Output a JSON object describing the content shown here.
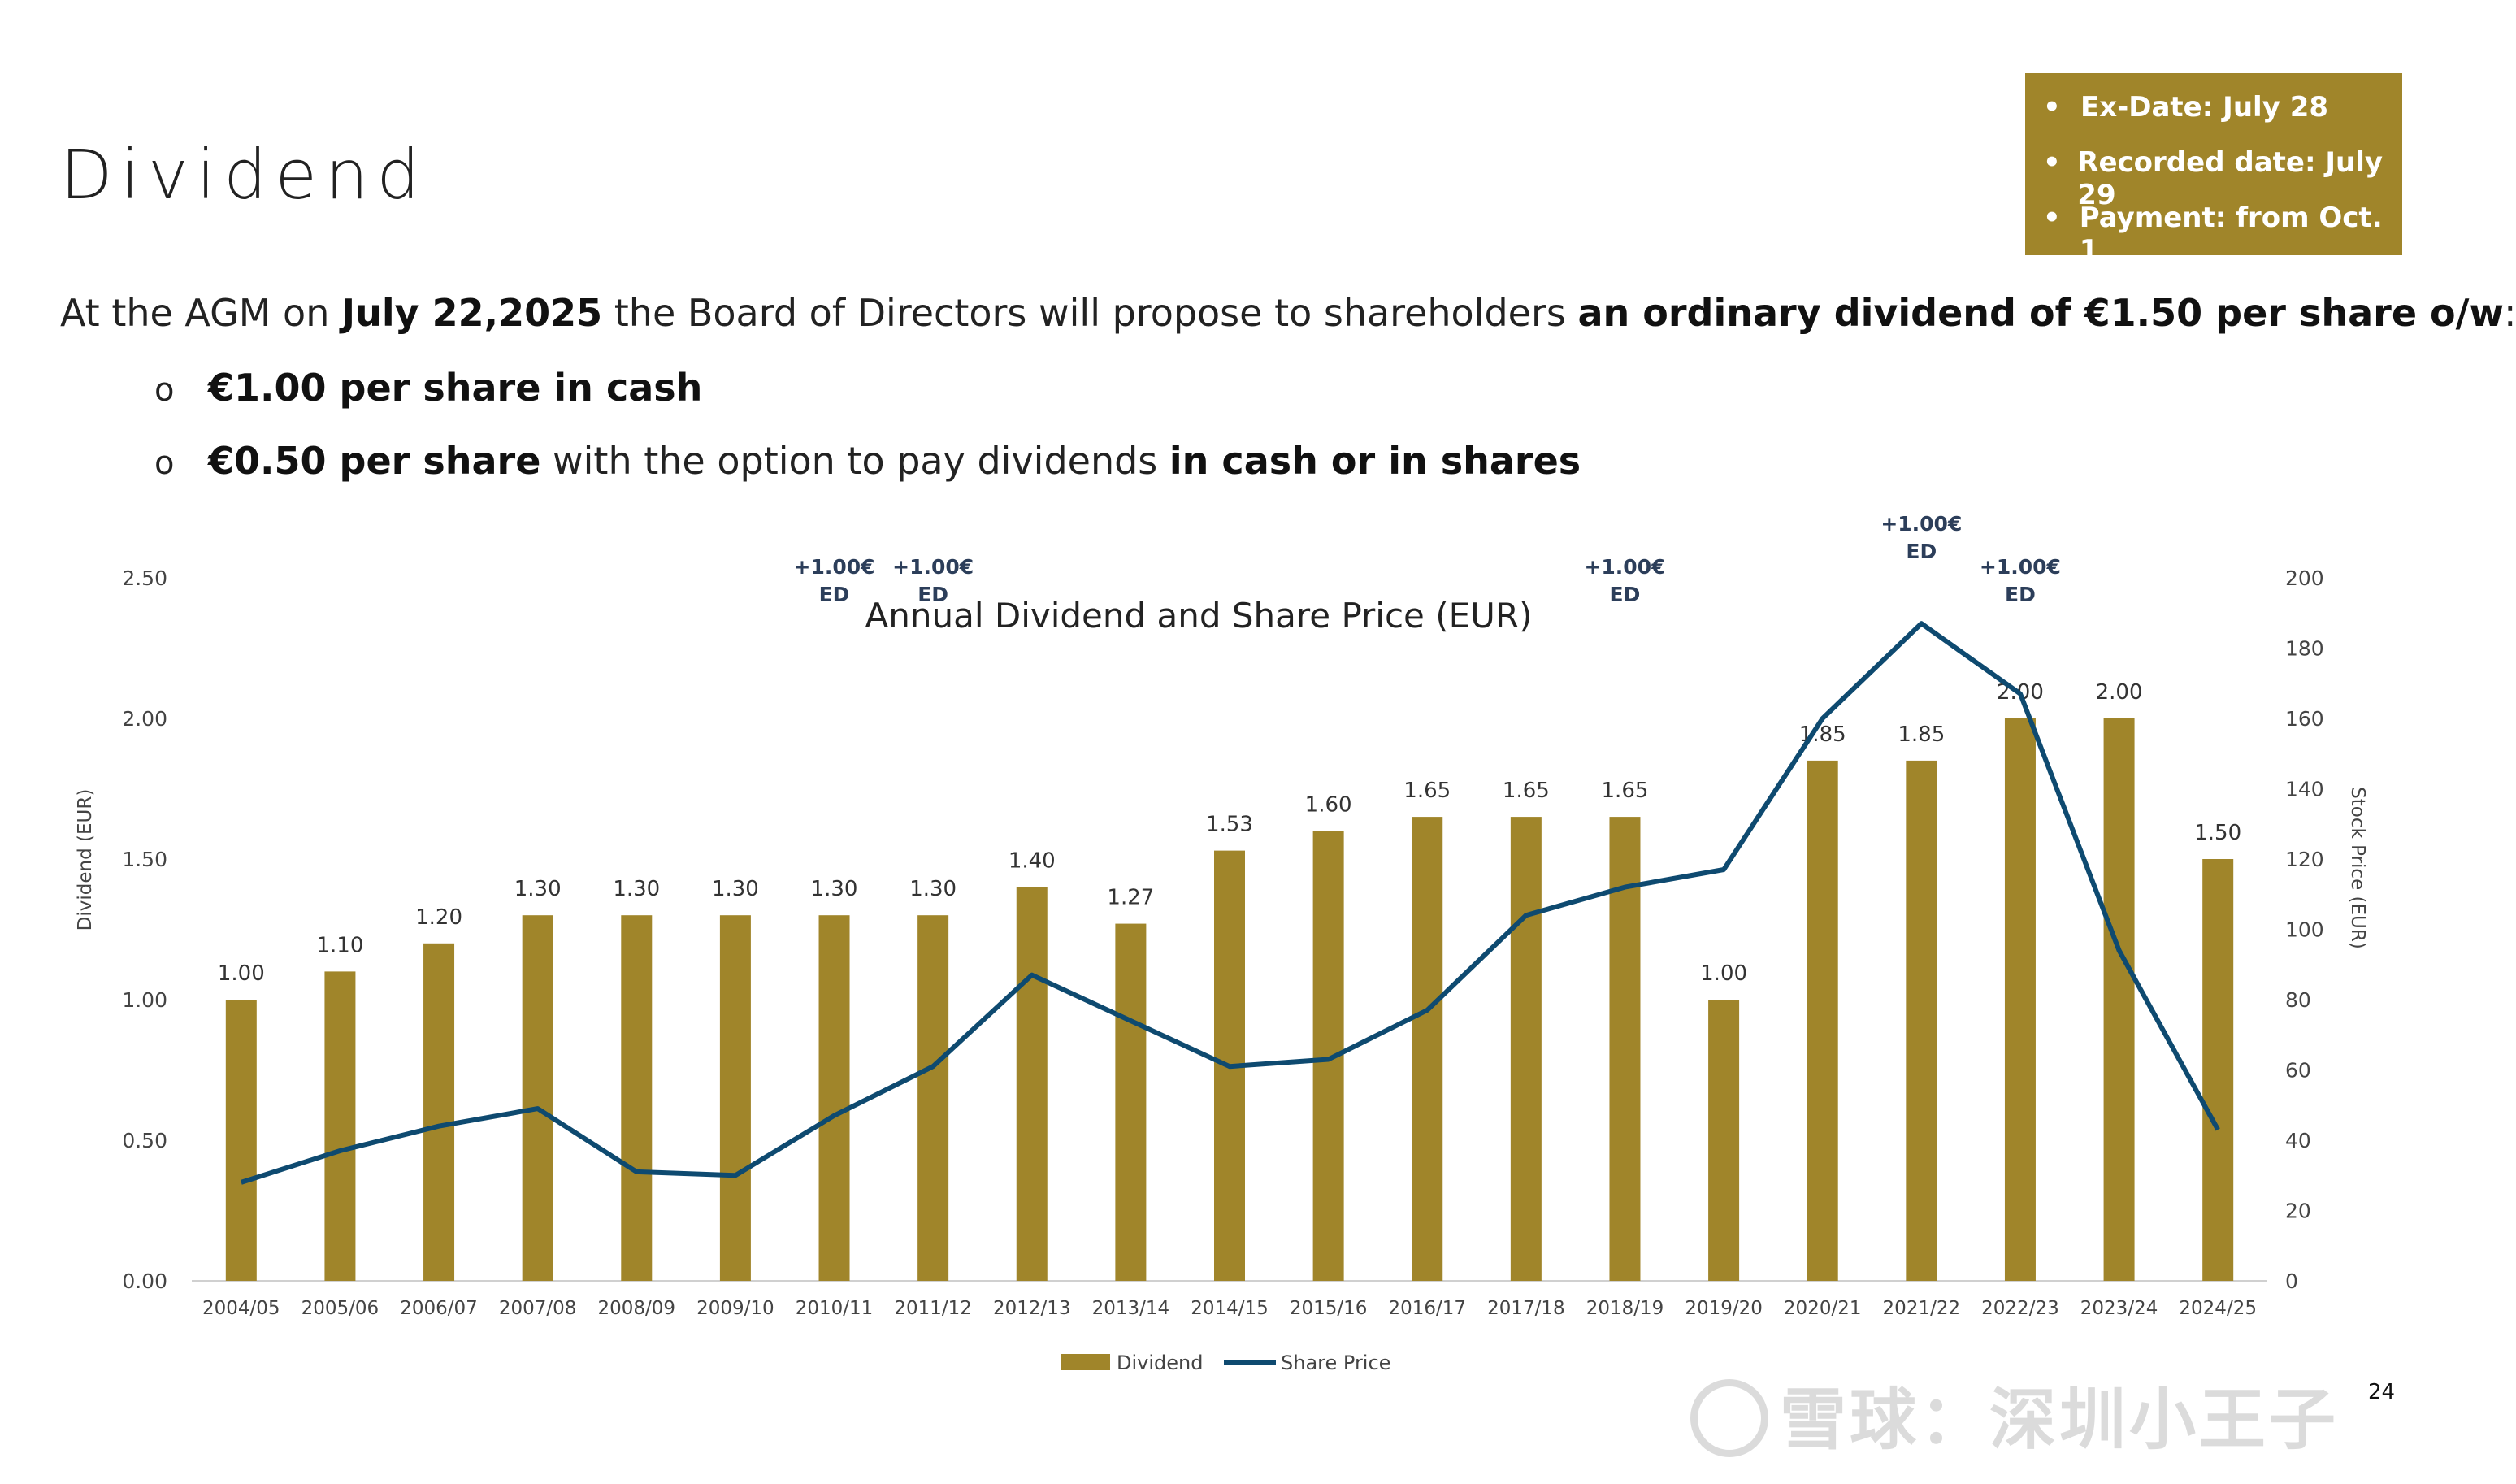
{
  "page": {
    "title": "Dividend",
    "page_number": "24",
    "watermark": "雪球：深圳小王子"
  },
  "infobox": {
    "items": [
      "Ex-Date: July 28",
      "Recorded date: July 29",
      "Payment: from Oct. 1"
    ]
  },
  "intro": {
    "t1": "At the AGM on ",
    "b1": "July 22,2025",
    "t2": " the Board of Directors will propose to shareholders ",
    "b2": "an ordinary dividend of €1.50 per share o/w",
    "t3": ":"
  },
  "bullets": [
    {
      "mark": "o",
      "b1": "€1.00 per share in cash",
      "t1": "",
      "b2": ""
    },
    {
      "mark": "o",
      "b1": "€0.50 per share",
      "t1": " with the option to pay dividends ",
      "b2": "in cash or in shares"
    }
  ],
  "colors": {
    "bar": "#a0852a",
    "line": "#0e4a70",
    "ed_text": "#2c3e5a",
    "axis_text": "#444444"
  },
  "chart_data": {
    "type": "bar",
    "title": "Annual Dividend and Share Price (EUR)",
    "ylabel": "Dividend (EUR)",
    "y2label": "Stock Price (EUR)",
    "ylim": [
      0,
      2.5
    ],
    "y2lim": [
      0,
      200
    ],
    "yticks": [
      "0.00",
      "0.50",
      "1.00",
      "1.50",
      "2.00",
      "2.50"
    ],
    "y2ticks": [
      "0",
      "20",
      "40",
      "60",
      "80",
      "100",
      "120",
      "140",
      "160",
      "180",
      "200"
    ],
    "categories": [
      "2004/05",
      "2005/06",
      "2006/07",
      "2007/08",
      "2008/09",
      "2009/10",
      "2010/11",
      "2011/12",
      "2012/13",
      "2013/14",
      "2014/15",
      "2015/16",
      "2016/17",
      "2017/18",
      "2018/19",
      "2019/20",
      "2020/21",
      "2021/22",
      "2022/23",
      "2023/24",
      "2024/25"
    ],
    "series": [
      {
        "name": "Dividend",
        "kind": "bar",
        "axis": "left",
        "values": [
          1.0,
          1.1,
          1.2,
          1.3,
          1.3,
          1.3,
          1.3,
          1.3,
          1.4,
          1.27,
          1.53,
          1.6,
          1.65,
          1.65,
          1.65,
          1.0,
          1.85,
          1.85,
          2.0,
          2.0,
          1.5
        ],
        "labels": [
          "1.00",
          "1.10",
          "1.20",
          "1.30",
          "1.30",
          "1.30",
          "1.30",
          "1.30",
          "1.40",
          "1.27",
          "1.53",
          "1.60",
          "1.65",
          "1.65",
          "1.65",
          "1.00",
          "1.85",
          "1.85",
          "2.00",
          "2.00",
          "1.50"
        ]
      },
      {
        "name": "Share Price",
        "kind": "line",
        "axis": "right",
        "values": [
          28,
          37,
          44,
          49,
          31,
          30,
          47,
          61,
          87,
          74,
          61,
          63,
          77,
          104,
          112,
          117,
          160,
          187,
          167,
          94,
          43
        ]
      }
    ],
    "annotations": [
      {
        "category": "2010/11",
        "line1": "+1.00€",
        "line2": "ED"
      },
      {
        "category": "2011/12",
        "line1": "+1.00€",
        "line2": "ED"
      },
      {
        "category": "2018/19",
        "line1": "+1.00€",
        "line2": "ED"
      },
      {
        "category": "2021/22",
        "line1": "+1.00€",
        "line2": "ED"
      },
      {
        "category": "2022/23",
        "line1": "+1.00€",
        "line2": "ED"
      }
    ],
    "legend": {
      "position": "bottom-center",
      "entries": [
        "Dividend",
        "Share Price"
      ]
    }
  }
}
